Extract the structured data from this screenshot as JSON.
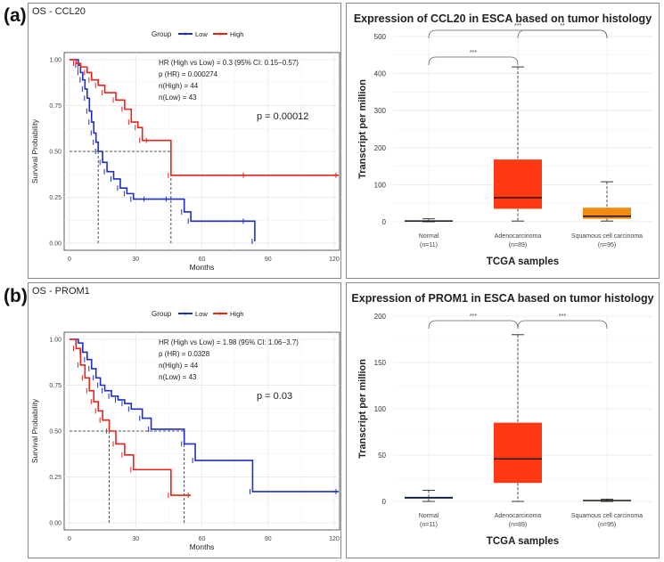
{
  "figure": {
    "panels": [
      {
        "label": "(a)",
        "km": {
          "title": "OS - CCL20",
          "legend_title": "Group",
          "legend_low": "Low",
          "legend_high": "High",
          "stats": [
            "HR (High vs Low) = 0.3 (95% CI: 0.15−0.57)",
            "p (HR) = 0.000274",
            "n(High) = 44",
            "n(Low) = 43"
          ],
          "pvalue": "p = 0.00012",
          "xlabel": "Months",
          "ylabel": "Survival Probability",
          "xticks": [
            "0",
            "30",
            "60",
            "90",
            "120"
          ],
          "yticks": [
            "0.00",
            "0.25",
            "0.50",
            "0.75",
            "1.00"
          ]
        },
        "box": {
          "title": "Expression of CCL20 in ESCA based on tumor histology",
          "ylabel": "Transcript per million",
          "xlabel": "TCGA samples",
          "yticks": [
            "0",
            "100",
            "200",
            "300",
            "400",
            "500"
          ],
          "groups": [
            {
              "name": "Normal",
              "n": "(n=11)"
            },
            {
              "name": "Adenocarcinoma",
              "n": "(n=89)"
            },
            {
              "name": "Squamous cell carcinoma",
              "n": "(n=95)"
            }
          ],
          "sig": [
            "***",
            "***",
            "**"
          ]
        }
      },
      {
        "label": "(b)",
        "km": {
          "title": "OS - PROM1",
          "legend_title": "Group",
          "legend_low": "Low",
          "legend_high": "High",
          "stats": [
            "HR (High vs Low) = 1.98 (95% CI: 1.06−3.7)",
            "p (HR) = 0.0328",
            "n(High) = 44",
            "n(Low) = 43"
          ],
          "pvalue": "p = 0.03",
          "xlabel": "Months",
          "ylabel": "Survival Probability",
          "xticks": [
            "0",
            "30",
            "60",
            "90",
            "120"
          ],
          "yticks": [
            "0.00",
            "0.25",
            "0.50",
            "0.75",
            "1.00"
          ]
        },
        "box": {
          "title": "Expression of PROM1 in ESCA based on tumor histology",
          "ylabel": "Transcript per million",
          "xlabel": "TCGA samples",
          "yticks": [
            "0",
            "50",
            "100",
            "150",
            "200"
          ],
          "groups": [
            {
              "name": "Normal",
              "n": "(n=11)"
            },
            {
              "name": "Adenocarcinoma",
              "n": "(n=89)"
            },
            {
              "name": "Squamous cell carcinoma",
              "n": "(n=95)"
            }
          ],
          "sig": [
            "***",
            "***"
          ]
        }
      }
    ]
  },
  "colors": {
    "low": "#1f2fc2",
    "high": "#e8231b",
    "adeno": "#ff3a12",
    "squamous": "#f28a12",
    "normal": "#2e5fb8"
  },
  "chart_data": [
    {
      "type": "line",
      "subtype": "kaplan-meier",
      "title": "OS - CCL20",
      "xlabel": "Months",
      "ylabel": "Survival Probability",
      "xlim": [
        0,
        120
      ],
      "ylim": [
        0,
        1
      ],
      "series": [
        {
          "name": "Low",
          "x": [
            0,
            4,
            5,
            6,
            7,
            8,
            9,
            10,
            11,
            12,
            13,
            15,
            17,
            20,
            23,
            26,
            29,
            35,
            45,
            52,
            55,
            80,
            84
          ],
          "y": [
            1.0,
            0.97,
            0.93,
            0.89,
            0.84,
            0.79,
            0.72,
            0.66,
            0.6,
            0.55,
            0.5,
            0.44,
            0.39,
            0.35,
            0.3,
            0.27,
            0.24,
            0.24,
            0.24,
            0.17,
            0.12,
            0.12,
            0.01
          ]
        },
        {
          "name": "High",
          "x": [
            0,
            3,
            5,
            8,
            10,
            13,
            16,
            21,
            25,
            28,
            31,
            33,
            36,
            46,
            80,
            122
          ],
          "y": [
            1.0,
            0.98,
            0.96,
            0.93,
            0.89,
            0.86,
            0.82,
            0.78,
            0.73,
            0.66,
            0.63,
            0.56,
            0.56,
            0.37,
            0.37,
            0.37
          ]
        }
      ],
      "median_survival": {
        "Low": 13,
        "High": 46
      }
    },
    {
      "type": "box",
      "title": "Expression of CCL20 in ESCA based on tumor histology",
      "xlabel": "TCGA samples",
      "ylabel": "Transcript per million",
      "ylim": [
        0,
        500
      ],
      "categories": [
        "Normal",
        "Adenocarcinoma",
        "Squamous cell carcinoma"
      ],
      "boxes": [
        {
          "min": 0,
          "q1": 1,
          "median": 2,
          "q3": 4,
          "max": 8
        },
        {
          "min": 2,
          "q1": 35,
          "median": 65,
          "q3": 168,
          "max": 418
        },
        {
          "min": 2,
          "q1": 8,
          "median": 15,
          "q3": 38,
          "max": 108
        }
      ]
    },
    {
      "type": "line",
      "subtype": "kaplan-meier",
      "title": "OS - PROM1",
      "xlabel": "Months",
      "ylabel": "Survival Probability",
      "xlim": [
        0,
        120
      ],
      "ylim": [
        0,
        1
      ],
      "series": [
        {
          "name": "Low",
          "x": [
            0,
            4,
            6,
            8,
            10,
            12,
            14,
            16,
            19,
            22,
            25,
            28,
            33,
            37,
            52,
            57,
            83,
            122
          ],
          "y": [
            1.0,
            0.98,
            0.93,
            0.89,
            0.84,
            0.79,
            0.75,
            0.72,
            0.69,
            0.67,
            0.65,
            0.62,
            0.57,
            0.51,
            0.43,
            0.34,
            0.17,
            0.17
          ]
        },
        {
          "name": "High",
          "x": [
            0,
            3,
            5,
            7,
            9,
            11,
            13,
            15,
            18,
            21,
            25,
            29,
            46,
            55
          ],
          "y": [
            1.0,
            0.95,
            0.86,
            0.79,
            0.72,
            0.66,
            0.61,
            0.56,
            0.5,
            0.43,
            0.37,
            0.29,
            0.15,
            0.15
          ]
        }
      ],
      "median_survival": {
        "Low": 52,
        "High": 18
      }
    },
    {
      "type": "box",
      "title": "Expression of PROM1 in ESCA based on tumor histology",
      "xlabel": "TCGA samples",
      "ylabel": "Transcript per million",
      "ylim": [
        0,
        200
      ],
      "categories": [
        "Normal",
        "Adenocarcinoma",
        "Squamous cell carcinoma"
      ],
      "boxes": [
        {
          "min": 0,
          "q1": 3,
          "median": 4,
          "q3": 5,
          "max": 12
        },
        {
          "min": 0,
          "q1": 20,
          "median": 46,
          "q3": 85,
          "max": 180
        },
        {
          "min": 0,
          "q1": 0.5,
          "median": 1,
          "q3": 1.5,
          "max": 2.5
        }
      ]
    }
  ]
}
